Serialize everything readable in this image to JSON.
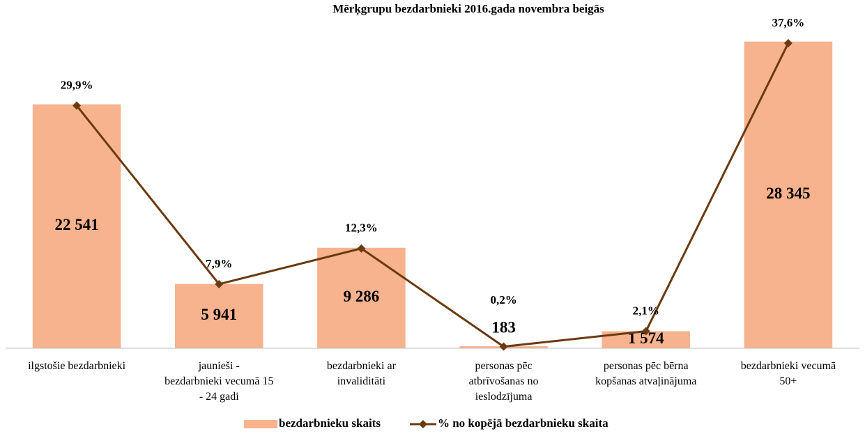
{
  "chart_data": {
    "type": "combo",
    "title": "Mērķgrupu bezdarbnieki 2016.gada novembra beigās",
    "categories": [
      "ilgstošie bezdarbnieki",
      "jaunieši - bezdarbnieki vecumā 15 - 24 gadi",
      "bezdarbnieki ar invaliditāti",
      "personas pēc atbrīvošanas no ieslodzījuma",
      "personas pēc bērna kopšanas atvaļinājuma",
      "bezdarbnieki vecumā 50+"
    ],
    "series": [
      {
        "name": "bezdarbnieku skaits",
        "type": "bar",
        "color": "#f7b38e",
        "values": [
          22541,
          5941,
          9286,
          183,
          1574,
          28345
        ],
        "value_labels": [
          "22 541",
          "5 941",
          "9 286",
          "183",
          "1 574",
          "28 345"
        ]
      },
      {
        "name": "% no kopējā bezdarbnieku skaita",
        "type": "line",
        "axis": "y2",
        "color": "#6b3a10",
        "values": [
          29.9,
          7.9,
          12.3,
          0.2,
          2.1,
          37.6
        ],
        "value_labels": [
          "29,9%",
          "7,9%",
          "12,3%",
          "0,2%",
          "2,1%",
          "37,6%"
        ]
      }
    ],
    "ylim": [
      0,
      30000
    ],
    "y2lim": [
      0,
      40
    ],
    "legend": "bottom"
  }
}
